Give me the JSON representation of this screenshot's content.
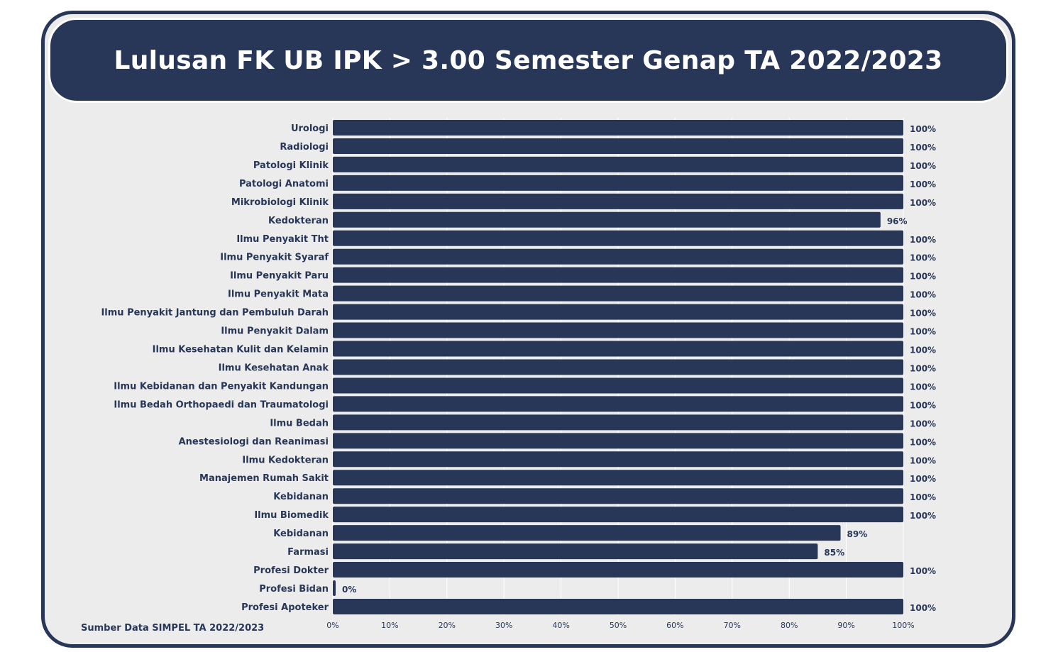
{
  "title": "Lulusan FK UB IPK > 3.00 Semester Genap TA 2022/2023",
  "source_note": "Sumber Data SIMPEL TA 2022/2023",
  "colors": {
    "bar": "#283758",
    "background": "#ececec",
    "text": "#283758",
    "grid": "#ffffff"
  },
  "chart_data": {
    "type": "bar",
    "orientation": "horizontal",
    "title": "Lulusan FK UB IPK > 3.00 Semester Genap TA 2022/2023",
    "xlim": [
      0,
      100
    ],
    "x_ticks": [
      "0%",
      "10%",
      "20%",
      "30%",
      "40%",
      "50%",
      "60%",
      "70%",
      "80%",
      "90%",
      "100%"
    ],
    "grid": true,
    "categories": [
      "Urologi",
      "Radiologi",
      "Patologi Klinik",
      "Patologi Anatomi",
      "Mikrobiologi Klinik",
      "Kedokteran",
      "Ilmu Penyakit Tht",
      "Ilmu Penyakit Syaraf",
      "Ilmu Penyakit Paru",
      "Ilmu Penyakit Mata",
      "Ilmu Penyakit Jantung dan Pembuluh Darah",
      "Ilmu Penyakit Dalam",
      "Ilmu Kesehatan Kulit dan Kelamin",
      "Ilmu Kesehatan Anak",
      "Ilmu Kebidanan dan Penyakit Kandungan",
      "Ilmu Bedah Orthopaedi dan Traumatologi",
      "Ilmu Bedah",
      "Anestesiologi dan Reanimasi",
      "Ilmu Kedokteran",
      "Manajemen Rumah Sakit",
      "Kebidanan",
      "Ilmu Biomedik",
      "Kebidanan",
      "Farmasi",
      "Profesi Dokter",
      "Profesi Bidan",
      "Profesi Apoteker"
    ],
    "values": [
      100,
      100,
      100,
      100,
      100,
      96,
      100,
      100,
      100,
      100,
      100,
      100,
      100,
      100,
      100,
      100,
      100,
      100,
      100,
      100,
      100,
      100,
      89,
      85,
      100,
      0,
      100
    ],
    "value_labels": [
      "100%",
      "100%",
      "100%",
      "100%",
      "100%",
      "96%",
      "100%",
      "100%",
      "100%",
      "100%",
      "100%",
      "100%",
      "100%",
      "100%",
      "100%",
      "100%",
      "100%",
      "100%",
      "100%",
      "100%",
      "100%",
      "100%",
      "89%",
      "85%",
      "100%",
      "0%",
      "100%"
    ]
  }
}
